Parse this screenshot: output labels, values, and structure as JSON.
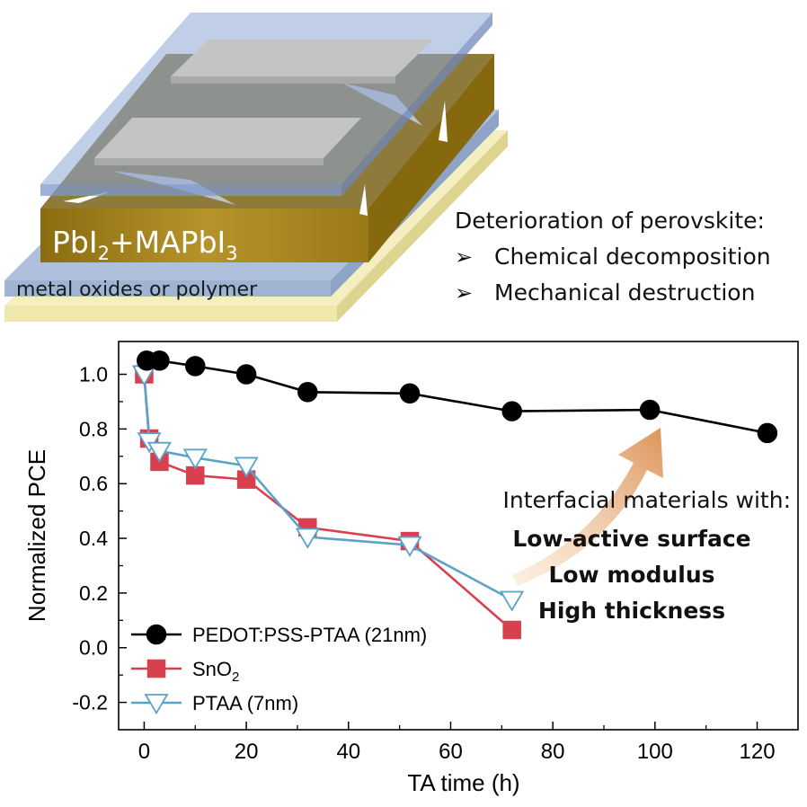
{
  "illustration": {
    "layer_formula_main": "PbI",
    "layer_formula_sub1": "2",
    "layer_formula_mid": "+MAPbI",
    "layer_formula_sub2": "3",
    "substrate_label": "metal oxides or polymer",
    "deterioration_title": "Deterioration of perovskite:",
    "bullets": [
      "Chemical decomposition",
      "Mechanical destruction"
    ],
    "bullet_marker": "➢",
    "colors": {
      "electrode_blue": "#8ea6d6",
      "silver": "#b8b8b8",
      "perovskite_gold": "#a8871e",
      "substrate_yellow": "#efe8ac",
      "transport_blue": "#9fb3d3"
    }
  },
  "chart_data": {
    "type": "line",
    "xlabel": "TA time (h)",
    "ylabel": "Normalized PCE",
    "xlim": [
      -5,
      128
    ],
    "ylim": [
      -0.3,
      1.12
    ],
    "xticks": [
      0,
      20,
      40,
      60,
      80,
      100,
      120
    ],
    "yticks": [
      -0.2,
      0.0,
      0.2,
      0.4,
      0.6,
      0.8,
      1.0
    ],
    "grid": false,
    "legend_position": "bottom-left",
    "series": [
      {
        "name": "PEDOT:PSS-PTAA (21nm)",
        "name_main": "PEDOT:PSS-PTAA (21nm)",
        "name_sub": "",
        "marker": "circle",
        "color": "#000000",
        "fill": "#000000",
        "x": [
          0.5,
          3,
          10,
          20,
          32,
          52,
          72,
          99,
          122
        ],
        "y": [
          1.05,
          1.05,
          1.03,
          1.0,
          0.935,
          0.93,
          0.865,
          0.87,
          0.785
        ]
      },
      {
        "name": "SnO2",
        "name_main": "SnO",
        "name_sub": "2",
        "marker": "square",
        "color": "#d9404f",
        "fill": "#d9404f",
        "x": [
          0,
          1,
          3,
          10,
          20,
          32,
          52,
          72
        ],
        "y": [
          1.0,
          0.765,
          0.68,
          0.63,
          0.615,
          0.44,
          0.39,
          0.065
        ]
      },
      {
        "name": "PTAA (7nm)",
        "name_main": "PTAA (7nm)",
        "name_sub": "",
        "marker": "triangle-down",
        "color": "#5aa3c8",
        "fill": "#ffffff",
        "x": [
          0,
          1,
          3,
          10,
          20,
          32,
          52,
          72
        ],
        "y": [
          1.0,
          0.755,
          0.72,
          0.695,
          0.665,
          0.405,
          0.375,
          0.175
        ]
      }
    ],
    "annotation": {
      "heading": "Interfacial materials with:",
      "points": [
        "Low-active surface",
        "Low modulus",
        "High thickness"
      ],
      "arrow_color": "#e3a26a"
    }
  }
}
